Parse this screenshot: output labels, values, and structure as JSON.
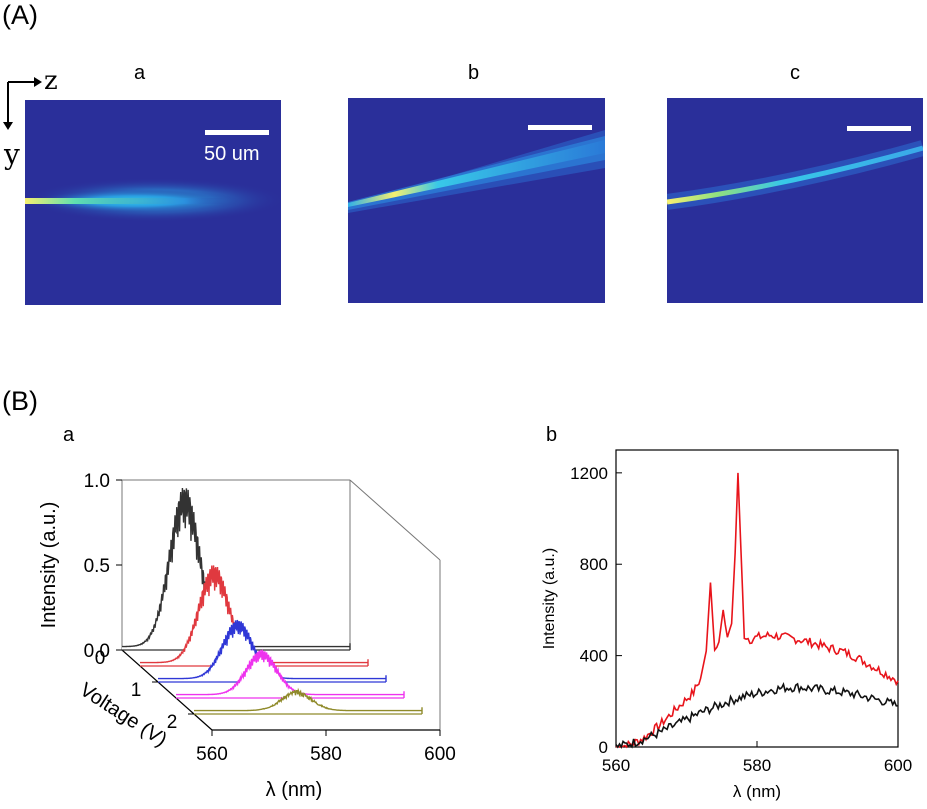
{
  "sections": {
    "A": "(A)",
    "B": "(B)"
  },
  "partA": {
    "axes": {
      "horizontal": "z",
      "vertical": "y"
    },
    "panels": [
      {
        "letter": "a",
        "scale_label": "50 um"
      },
      {
        "letter": "b",
        "scale_label": ""
      },
      {
        "letter": "c",
        "scale_label": ""
      }
    ],
    "colors": {
      "background": "#2a2f9a",
      "beam_core": "#f5f070",
      "beam_mid": "#38c8e8",
      "beam_edge": "#2a74d8"
    }
  },
  "partB": {
    "panel_a_letter": "a",
    "panel_b_letter": "b"
  },
  "chart_data": [
    {
      "type": "line",
      "variant": "3d-waterfall",
      "title": "",
      "xlabel": "λ (nm)",
      "ylabel": "Intensity (a.u.)",
      "zlabel": "Voltage (V)",
      "xlim": [
        560,
        600
      ],
      "ylim": [
        0,
        1.0
      ],
      "zlim": [
        0,
        2.5
      ],
      "x_ticks": [
        "560",
        "580",
        "600"
      ],
      "y_ticks": [
        "0.0",
        "0.5",
        "1.0"
      ],
      "z_ticks": [
        "0",
        "1",
        "2"
      ],
      "series": [
        {
          "name": "0 V",
          "voltage": 0.0,
          "color": "#333333",
          "peak_center": 571,
          "peak_intensity": 0.9,
          "fine_peaks": true
        },
        {
          "name": "0.5 V",
          "voltage": 0.5,
          "color": "#e0393f",
          "peak_center": 573,
          "peak_intensity": 0.55,
          "fine_peaks": true
        },
        {
          "name": "1 V",
          "voltage": 1.0,
          "color": "#2f37d6",
          "peak_center": 574,
          "peak_intensity": 0.33,
          "fine_peaks": true
        },
        {
          "name": "1.5 V",
          "voltage": 1.5,
          "color": "#ee33ee",
          "peak_center": 575,
          "peak_intensity": 0.25,
          "fine_peaks": true
        },
        {
          "name": "2 V",
          "voltage": 2.0,
          "color": "#8f8a2a",
          "peak_center": 578,
          "peak_intensity": 0.12,
          "fine_peaks": false
        }
      ]
    },
    {
      "type": "line",
      "title": "",
      "xlabel": "λ (nm)",
      "ylabel": "Intensity (a.u.)",
      "xlim": [
        560,
        600
      ],
      "ylim": [
        0,
        1300
      ],
      "x_ticks": [
        560,
        580,
        600
      ],
      "y_ticks": [
        0,
        400,
        800,
        1200
      ],
      "series": [
        {
          "name": "red",
          "color": "#e8141b",
          "x": [
            560,
            562,
            564,
            566,
            568,
            570,
            571,
            572,
            572.8,
            573.4,
            574,
            574.6,
            575.2,
            575.8,
            576.4,
            576.9,
            577.3,
            577.7,
            578.2,
            579,
            580,
            582,
            584,
            586,
            588,
            590,
            592,
            594,
            596,
            598,
            600
          ],
          "y": [
            0,
            10,
            40,
            90,
            150,
            210,
            240,
            300,
            420,
            720,
            420,
            460,
            600,
            470,
            540,
            850,
            1200,
            880,
            490,
            470,
            480,
            490,
            480,
            470,
            455,
            435,
            420,
            395,
            360,
            325,
            290
          ]
        },
        {
          "name": "black",
          "color": "#111111",
          "x": [
            560,
            562,
            564,
            566,
            568,
            570,
            572,
            574,
            576,
            578,
            580,
            582,
            584,
            586,
            588,
            590,
            592,
            594,
            596,
            598,
            600
          ],
          "y": [
            0,
            15,
            35,
            60,
            90,
            120,
            150,
            175,
            200,
            220,
            235,
            250,
            260,
            262,
            255,
            248,
            240,
            230,
            215,
            200,
            180
          ]
        }
      ]
    }
  ]
}
